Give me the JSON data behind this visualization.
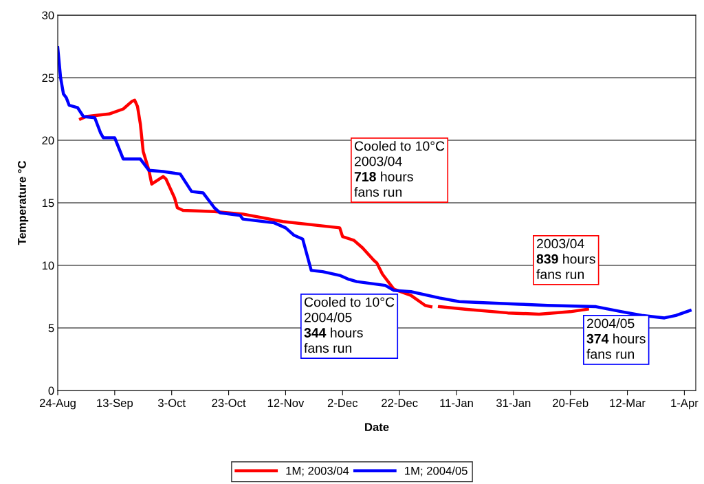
{
  "chart_data": {
    "type": "line",
    "xlabel": "Date",
    "ylabel": "Temperature °C",
    "ylim": [
      0,
      30
    ],
    "yticks": [
      0,
      5,
      10,
      15,
      20,
      25,
      30
    ],
    "xlim": [
      "2004-08-24",
      "2005-04-05"
    ],
    "xticks": [
      {
        "value": "2004-08-24",
        "label": "24-Aug"
      },
      {
        "value": "2004-09-13",
        "label": "13-Sep"
      },
      {
        "value": "2004-10-03",
        "label": "3-Oct"
      },
      {
        "value": "2004-10-23",
        "label": "23-Oct"
      },
      {
        "value": "2004-11-12",
        "label": "12-Nov"
      },
      {
        "value": "2004-12-02",
        "label": "2-Dec"
      },
      {
        "value": "2004-12-22",
        "label": "22-Dec"
      },
      {
        "value": "2005-01-11",
        "label": "11-Jan"
      },
      {
        "value": "2005-01-31",
        "label": "31-Jan"
      },
      {
        "value": "2005-02-20",
        "label": "20-Feb"
      },
      {
        "value": "2005-03-12",
        "label": "12-Mar"
      },
      {
        "value": "2005-04-01",
        "label": "1-Apr"
      }
    ],
    "grid": "y",
    "legend": "bottom",
    "marker": "none",
    "line_style": "solid",
    "series": [
      {
        "name": "1M; 2003/04",
        "color": "#ff0000",
        "x": [
          "2004-09-01",
          "2004-09-03",
          "2004-09-11",
          "2004-09-16",
          "2004-09-19",
          "2004-09-20",
          "2004-09-21",
          "2004-09-22",
          "2004-09-23",
          "2004-09-25",
          "2004-09-26",
          "2004-09-30",
          "2004-10-01",
          "2004-10-04",
          "2004-10-05",
          "2004-10-07",
          "2004-10-18",
          "2004-10-28",
          "2004-11-11",
          "2004-12-01",
          "2004-12-02",
          "2004-12-06",
          "2004-12-09",
          "2004-12-13",
          "2004-12-14",
          "2004-12-16",
          "2004-12-20",
          "2004-12-26",
          "2004-12-31",
          "2005-01-02",
          "2005-01-03",
          "2005-01-05",
          "2005-01-14",
          "2005-01-29",
          "2005-02-09",
          "2005-02-20",
          "2005-02-26"
        ],
        "values": [
          21.7,
          21.9,
          22.1,
          22.5,
          23.1,
          23.2,
          22.7,
          21.3,
          19.1,
          17.6,
          16.5,
          17.1,
          16.9,
          15.4,
          14.6,
          14.4,
          14.3,
          14.1,
          13.5,
          13.0,
          12.3,
          12.0,
          11.4,
          10.4,
          10.2,
          9.3,
          8.1,
          7.6,
          6.8,
          6.7,
          null,
          6.7,
          6.5,
          6.2,
          6.1,
          6.3,
          6.5
        ]
      },
      {
        "name": "1M; 2004/05",
        "color": "#0000ff",
        "x": [
          "2004-08-24",
          "2004-08-25",
          "2004-08-26",
          "2004-08-27",
          "2004-08-28",
          "2004-08-31",
          "2004-09-02",
          "2004-09-06",
          "2004-09-08",
          "2004-09-09",
          "2004-09-13",
          "2004-09-16",
          "2004-09-22",
          "2004-09-25",
          "2004-09-30",
          "2004-10-06",
          "2004-10-10",
          "2004-10-14",
          "2004-10-18",
          "2004-10-20",
          "2004-10-27",
          "2004-10-28",
          "2004-11-08",
          "2004-11-12",
          "2004-11-15",
          "2004-11-18",
          "2004-11-21",
          "2004-11-25",
          "2004-12-01",
          "2004-12-04",
          "2004-12-07",
          "2004-12-17",
          "2004-12-20",
          "2004-12-26",
          "2005-01-05",
          "2005-01-12",
          "2005-02-02",
          "2005-02-12",
          "2005-03-01",
          "2005-03-10",
          "2005-03-17",
          "2005-03-25",
          "2005-03-29",
          "2005-04-03"
        ],
        "values": [
          27.4,
          25.0,
          23.7,
          23.4,
          22.8,
          22.6,
          21.9,
          21.8,
          20.6,
          20.2,
          20.2,
          18.5,
          18.5,
          17.6,
          17.5,
          17.3,
          15.9,
          15.8,
          14.6,
          14.2,
          14.0,
          13.7,
          13.4,
          13.0,
          12.4,
          12.1,
          9.6,
          9.5,
          9.2,
          8.9,
          8.7,
          8.4,
          8.0,
          7.9,
          7.4,
          7.1,
          6.9,
          6.8,
          6.7,
          6.3,
          6.0,
          5.8,
          6.0,
          6.4
        ]
      }
    ],
    "annotations": [
      "Cooled to 10°C\n2003/04\n718 hours\nfans run",
      "Cooled to 10°C\n2004/05\n344 hours\nfans run",
      "2003/04\n839 hours\nfans run",
      "2004/05\n374 hours\nfans run"
    ]
  }
}
